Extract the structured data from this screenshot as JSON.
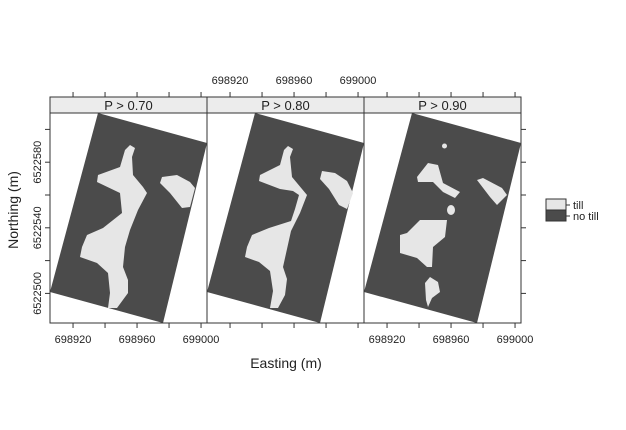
{
  "chart_data": {
    "type": "heatmap",
    "panels": [
      {
        "title": "P > 0.70"
      },
      {
        "title": "P > 0.80"
      },
      {
        "title": "P > 0.90"
      }
    ],
    "xlabel": "Easting (m)",
    "ylabel": "Northing (m)",
    "x_ticks": [
      698920,
      698940,
      698960,
      698980,
      699000
    ],
    "x_tick_labels": [
      "698920",
      "698960",
      "699000"
    ],
    "y_ticks": [
      6522500,
      6522520,
      6522540,
      6522560,
      6522580,
      6522600
    ],
    "y_tick_labels": [
      "6522500",
      "6522540",
      "6522580"
    ],
    "xlim": [
      698905.6,
      699003.7
    ],
    "ylim": [
      6522482,
      6522610
    ],
    "legend": {
      "position": "right",
      "items": [
        {
          "label": "till",
          "color": "#e6e6e6"
        },
        {
          "label": "no till",
          "color": "#4b4b4b"
        }
      ]
    },
    "colors": {
      "till": "#e6e6e6",
      "no_till": "#4b4b4b",
      "strip": "#ececec"
    }
  }
}
